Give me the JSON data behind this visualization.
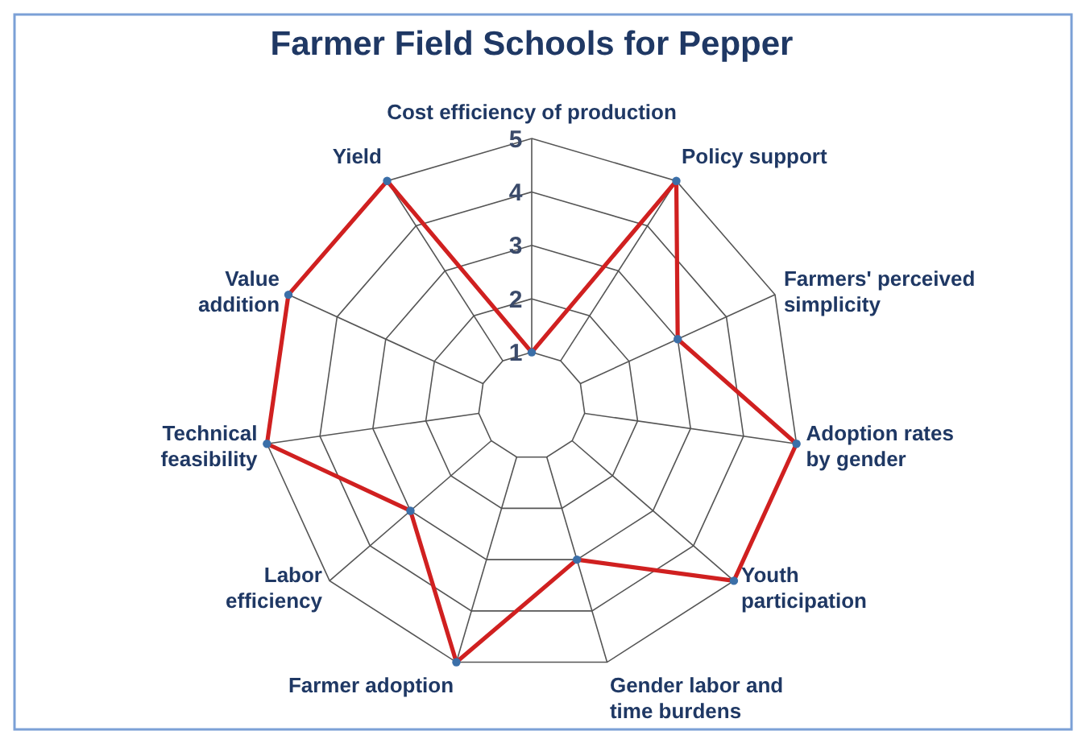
{
  "chart_data": {
    "type": "radar",
    "title": "Farmer Field Schools for Pepper",
    "categories": [
      "Cost efficiency of production",
      "Policy support",
      "Farmers' perceived\nsimplicity",
      "Adoption rates\nby gender",
      "Youth\nparticipation",
      "Gender labor and\ntime burdens",
      "Farmer adoption",
      "Labor\nefficiency",
      "Technical\nfeasibility",
      "Value\naddition",
      "Yield"
    ],
    "series": [
      {
        "color": "#d02020",
        "values": [
          1,
          5,
          3,
          5,
          5,
          3,
          5,
          3,
          5,
          5,
          5
        ]
      }
    ],
    "ylim": [
      0,
      5
    ],
    "yticks": [
      1,
      2,
      3,
      4,
      5
    ],
    "grid": true,
    "marker": "circle",
    "line_style": "solid"
  }
}
